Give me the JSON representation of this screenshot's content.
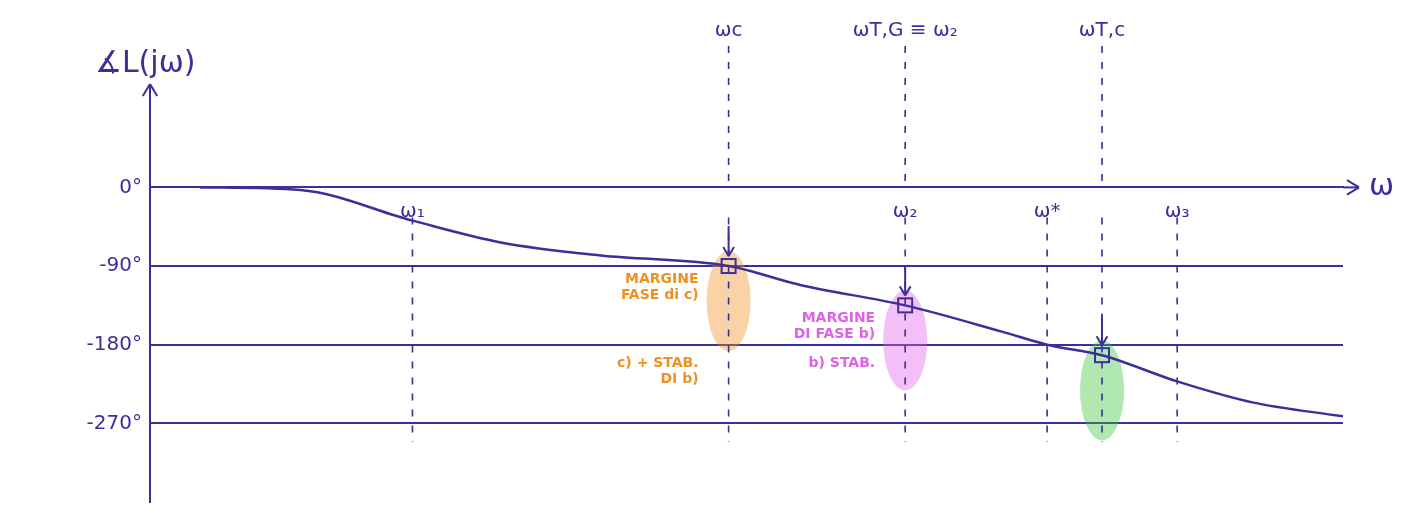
{
  "chart_data": {
    "type": "line",
    "y_label": "∡L(jω)",
    "x_label": "ω",
    "x": [
      4.2,
      12.6,
      22,
      29.4,
      37.8,
      48.5,
      54.6,
      63.3,
      71.4,
      75.2,
      79.8,
      86.1,
      92.4,
      100
    ],
    "values": [
      0,
      -3,
      -38,
      -63,
      -78,
      -90,
      -112,
      -135,
      -165,
      -180,
      -192,
      -222,
      -246,
      -262
    ],
    "color": "#3b2f9a",
    "xlim": [
      0,
      100
    ],
    "xticks": [
      {
        "value": 22,
        "label": "ω₁"
      },
      {
        "value": 63.3,
        "label": "ω₂"
      },
      {
        "value": 75.2,
        "label": "ω*"
      },
      {
        "value": 86.1,
        "label": "ω₃"
      }
    ],
    "ylim": [
      -360,
      100
    ],
    "yticks": [
      {
        "value": 0,
        "label": "0°"
      },
      {
        "value": -90,
        "label": "-90°"
      },
      {
        "value": -180,
        "label": "-180°"
      },
      {
        "value": -270,
        "label": "-270°"
      }
    ],
    "grid": "y",
    "vertical_lines": [
      {
        "x": 22
      },
      {
        "x": 48.5,
        "label": "ωc"
      },
      {
        "x": 63.3,
        "label": "ωT,G ≡ ω₂"
      },
      {
        "x": 75.2
      },
      {
        "x": 79.8,
        "label": "ωT,c"
      },
      {
        "x": 86.1
      }
    ],
    "highlights": [
      {
        "x": 48.5,
        "y": -90,
        "color": "#f0901e",
        "label": "MARGINE FASE di c)",
        "note": "c) + STAB. DI b)"
      },
      {
        "x": 63.3,
        "y": -135,
        "color": "#e060e8",
        "label": "MARGINE DI FASE b)",
        "note": "b) STAB."
      },
      {
        "x": 79.8,
        "y": -192,
        "color": "#3cc43c"
      }
    ]
  }
}
